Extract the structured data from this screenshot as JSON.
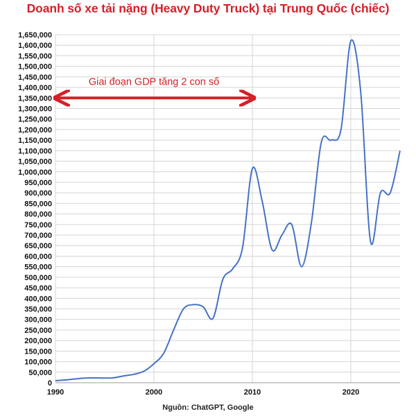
{
  "chart_data": {
    "type": "line",
    "title": "Doanh số xe tải nặng (Heavy Duty Truck) tại Trung Quốc (chiếc)",
    "xlabel": "",
    "ylabel": "",
    "source": "Nguồn: ChatGPT, Google",
    "xlim": [
      1990,
      2025
    ],
    "ylim": [
      0,
      1650000
    ],
    "x_ticks": [
      "1990",
      "2000",
      "2010",
      "2020"
    ],
    "y_ticks": [
      "0",
      "50,000",
      "100,000",
      "150,000",
      "200,000",
      "250,000",
      "300,000",
      "350,000",
      "400,000",
      "450,000",
      "500,000",
      "550,000",
      "600,000",
      "650,000",
      "700,000",
      "750,000",
      "800,000",
      "850,000",
      "900,000",
      "950,000",
      "1,000,000",
      "1,050,000",
      "1,100,000",
      "1,150,000",
      "1,200,000",
      "1,250,000",
      "1,300,000",
      "1,350,000",
      "1,400,000",
      "1,450,000",
      "1,500,000",
      "1,550,000",
      "1,600,000",
      "1,650,000"
    ],
    "grid": "horizontal",
    "line_color": "#4472c4",
    "annotation": {
      "text": "Giai đoạn GDP tăng 2 con số",
      "x_start": 1990,
      "x_end": 2010,
      "y": 1350000,
      "color": "#d42027"
    },
    "series": [
      {
        "x": [
          1990,
          1991,
          1992,
          1993,
          1994,
          1995,
          1996,
          1997,
          1998,
          1999,
          2000,
          2001,
          2002,
          2003,
          2004,
          2005,
          2006,
          2007,
          2008,
          2009,
          2010,
          2011,
          2012,
          2013,
          2014,
          2015,
          2016,
          2017,
          2018,
          2019,
          2020,
          2021,
          2022,
          2023,
          2024,
          2025
        ],
        "values": [
          10000,
          13000,
          18000,
          22000,
          23000,
          22000,
          24000,
          33000,
          40000,
          55000,
          90000,
          140000,
          250000,
          350000,
          370000,
          360000,
          305000,
          490000,
          540000,
          640000,
          1015000,
          860000,
          630000,
          700000,
          750000,
          550000,
          760000,
          1140000,
          1150000,
          1200000,
          1620000,
          1380000,
          670000,
          900000,
          900000,
          1100000
        ]
      }
    ]
  }
}
